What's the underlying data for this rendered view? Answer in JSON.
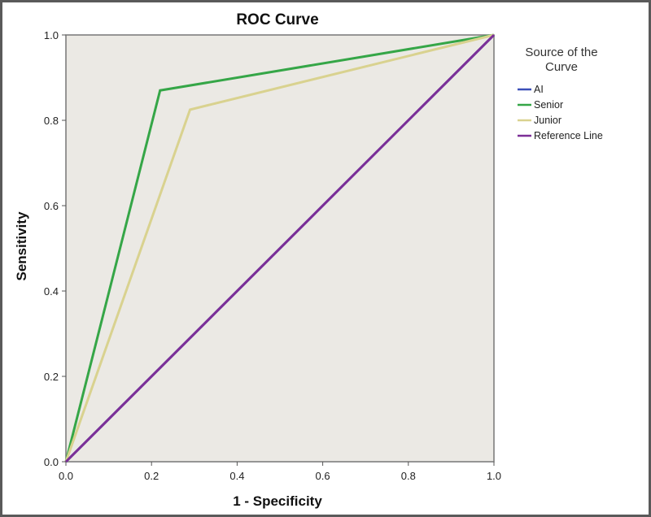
{
  "chart_data": {
    "type": "line",
    "title": "ROC Curve",
    "xlabel": "1 - Specificity",
    "ylabel": "Sensitivity",
    "xlim": [
      0.0,
      1.0
    ],
    "ylim": [
      0.0,
      1.0
    ],
    "xticks": [
      "0.0",
      "0.2",
      "0.4",
      "0.6",
      "0.8",
      "1.0"
    ],
    "yticks": [
      "0.0",
      "0.2",
      "0.4",
      "0.6",
      "0.8",
      "1.0"
    ],
    "grid": false,
    "background": "#ebe9e4",
    "legend": {
      "title_lines": [
        "Source of the",
        "Curve"
      ],
      "placement": "right"
    },
    "series": [
      {
        "name": "AI",
        "color": "#3b4fb8",
        "x": [
          0.0,
          1.0
        ],
        "y": [
          0.0,
          1.0
        ]
      },
      {
        "name": "Senior",
        "color": "#35a647",
        "x": [
          0.0,
          0.22,
          1.0
        ],
        "y": [
          0.0,
          0.87,
          1.0
        ]
      },
      {
        "name": "Junior",
        "color": "#d9d28f",
        "x": [
          0.0,
          0.29,
          1.0
        ],
        "y": [
          0.0,
          0.825,
          1.0
        ]
      },
      {
        "name": "Reference Line",
        "color": "#7c2f97",
        "x": [
          0.0,
          1.0
        ],
        "y": [
          0.0,
          1.0
        ]
      }
    ]
  }
}
